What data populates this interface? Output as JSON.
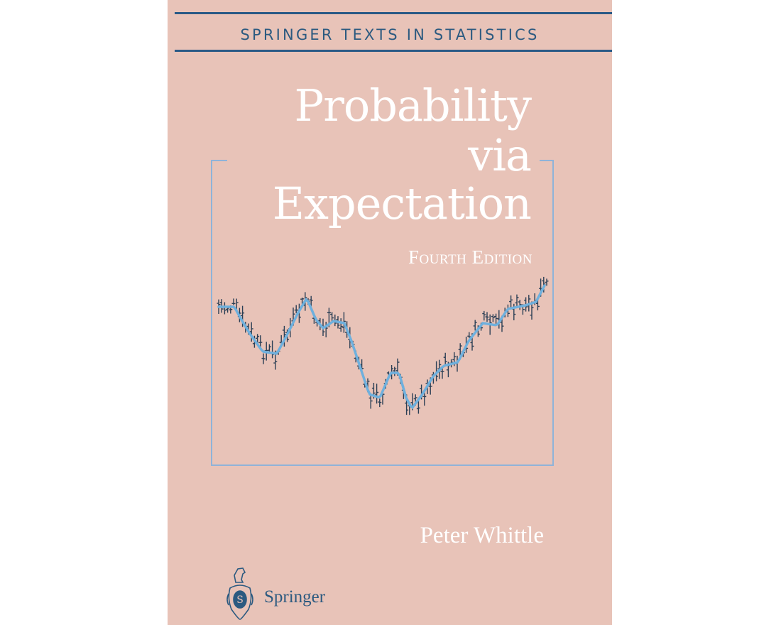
{
  "cover": {
    "series": "SPRINGER TEXTS IN STATISTICS",
    "title_lines": [
      "Probability",
      "via",
      "Expectation"
    ],
    "edition": "Fourth Edition",
    "author": "Peter Whittle",
    "publisher": "Springer",
    "publisher_logo": "springer-knight-logo-icon",
    "colors": {
      "background": "#e8c3b8",
      "series_text": "#2c5a80",
      "rule": "#2a5a86",
      "frame": "#8fb3d9",
      "bars": "#2b3f55",
      "trend": "#6fb0dd",
      "title": "#ffffff"
    }
  }
}
